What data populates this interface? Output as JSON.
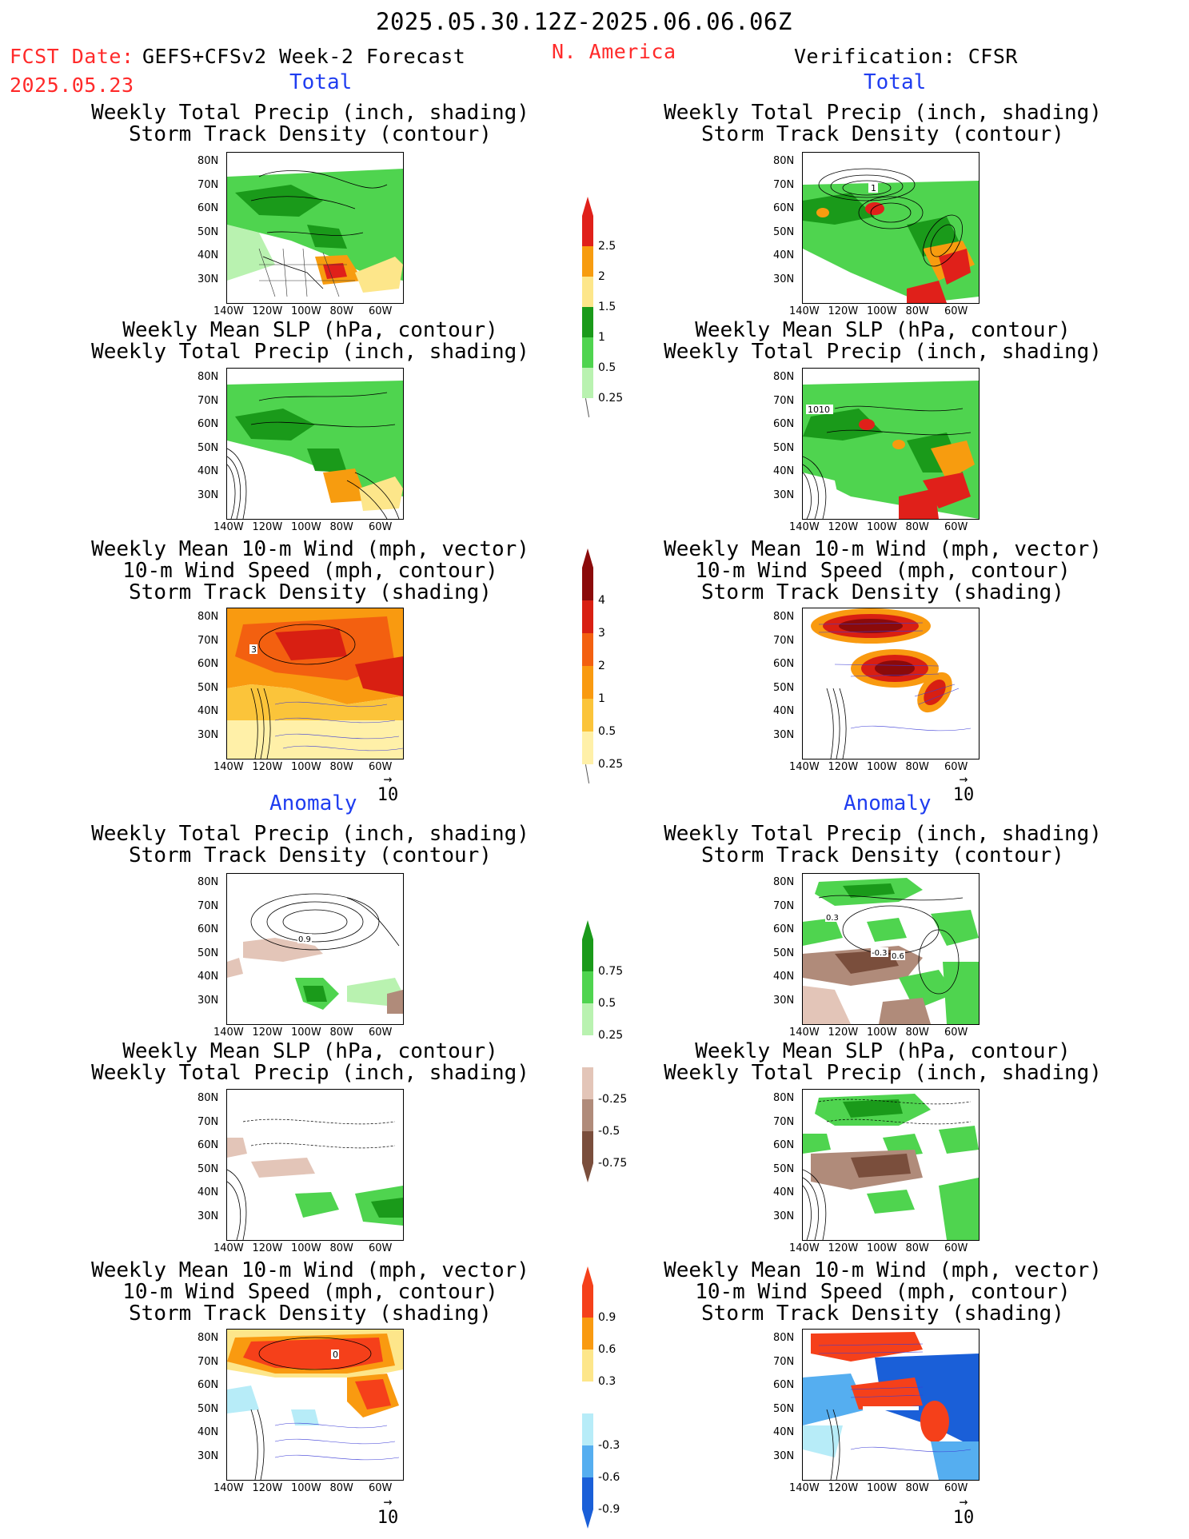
{
  "header": {
    "period": "2025.05.30.12Z-2025.06.06.06Z",
    "fcst_label": "FCST Date:",
    "fcst_model": "GEFS+CFSv2 Week-2 Forecast",
    "fcst_date": "2025.05.23",
    "region": "N. America",
    "verification": "Verification: CFSR"
  },
  "sections": {
    "total": "Total",
    "anomaly": "Anomaly"
  },
  "panel_titles": {
    "precip_storm": "Weekly Total Precip (inch, shading)\nStorm Track Density (contour)",
    "slp_precip": "Weekly Mean SLP (hPa, contour)\nWeekly Total Precip (inch, shading)",
    "wind_storm": "Weekly Mean 10-m Wind (mph, vector)\n10-m Wind Speed (mph, contour)\nStorm Track Density (shading)"
  },
  "axes": {
    "lat_ticks": [
      "80N",
      "70N",
      "60N",
      "50N",
      "40N",
      "30N"
    ],
    "lon_ticks": [
      "140W",
      "120W",
      "100W",
      "80W",
      "60W"
    ]
  },
  "vector_ref": "10",
  "colorbars": {
    "precip_total": {
      "labels": [
        "2.5",
        "2",
        "1.5",
        "1",
        "0.5",
        "0.25"
      ],
      "colors": [
        "#e0201a",
        "#f79c0f",
        "#fde68a",
        "#1a9a1a",
        "#4fd44f",
        "#b9f2b0"
      ]
    },
    "storm_total": {
      "labels": [
        "4",
        "3",
        "2",
        "1",
        "0.5",
        "0.25"
      ],
      "colors": [
        "#8b0a0a",
        "#d81f12",
        "#f36010",
        "#f99a10",
        "#fbc43a",
        "#fff0a8"
      ]
    },
    "precip_anom": {
      "labels": [
        "0.75",
        "0.5",
        "0.25",
        "-0.25",
        "-0.5",
        "-0.75"
      ],
      "colors": [
        "#1a9a1a",
        "#4fd44f",
        "#b9f2b0",
        "#ffffff",
        "#e3c5b8",
        "#b08b7a",
        "#7a4e3c"
      ]
    },
    "storm_anom": {
      "labels": [
        "0.9",
        "0.6",
        "0.3",
        "-0.3",
        "-0.6",
        "-0.9"
      ],
      "colors": [
        "#f5401a",
        "#f99a10",
        "#fde68a",
        "#ffffff",
        "#b7ecf8",
        "#55aef0",
        "#1a5fd8"
      ]
    }
  },
  "contour_labels": {
    "obs_storm_total": "1",
    "obs_slp_total": "1010",
    "fc_wind_total": "3",
    "fc_storm_anom": "0.9",
    "obs_storm_anom_a": "-0.3",
    "obs_storm_anom_b": "0.6",
    "obs_storm_anom_c": "0.3",
    "fc_wind_anom": "0"
  }
}
